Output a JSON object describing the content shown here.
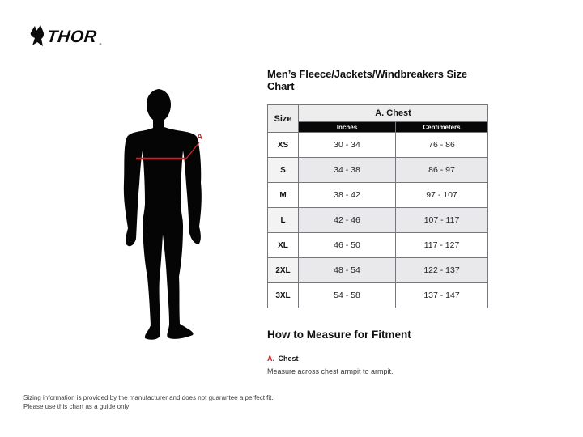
{
  "brand": {
    "name": "THOR",
    "trademark": "®"
  },
  "figure": {
    "measurement_label": "A"
  },
  "size_chart": {
    "title": "Men’s Fleece/Jackets/Windbreakers Size Chart",
    "columns": {
      "size": "Size",
      "group": "A. Chest",
      "units": [
        "Inches",
        "Centimeters"
      ]
    },
    "rows": [
      {
        "size": "XS",
        "inches": "30 - 34",
        "centimeters": "76 - 86"
      },
      {
        "size": "S",
        "inches": "34 - 38",
        "centimeters": "86 - 97"
      },
      {
        "size": "M",
        "inches": "38 - 42",
        "centimeters": "97 - 107"
      },
      {
        "size": "L",
        "inches": "42 - 46",
        "centimeters": "107 - 117"
      },
      {
        "size": "XL",
        "inches": "46 - 50",
        "centimeters": "117 - 127"
      },
      {
        "size": "2XL",
        "inches": "48 - 54",
        "centimeters": "122 - 137"
      },
      {
        "size": "3XL",
        "inches": "54 - 58",
        "centimeters": "137 - 147"
      }
    ]
  },
  "how_to_measure": {
    "heading": "How to Measure for Fitment",
    "items": [
      {
        "key": "A.",
        "label": "Chest",
        "description": "Measure across chest armpit to armpit."
      }
    ]
  },
  "disclaimer": {
    "line1": "Sizing information is provided by the manufacturer and does not guarantee a perfect fit.",
    "line2": "Please use this chart as a guide only"
  },
  "colors": {
    "accent_red": "#c8232b",
    "table_header_bg": "#ededee",
    "table_alt_row_bg": "#e9e9eb",
    "unit_bar_bg": "#070707"
  }
}
